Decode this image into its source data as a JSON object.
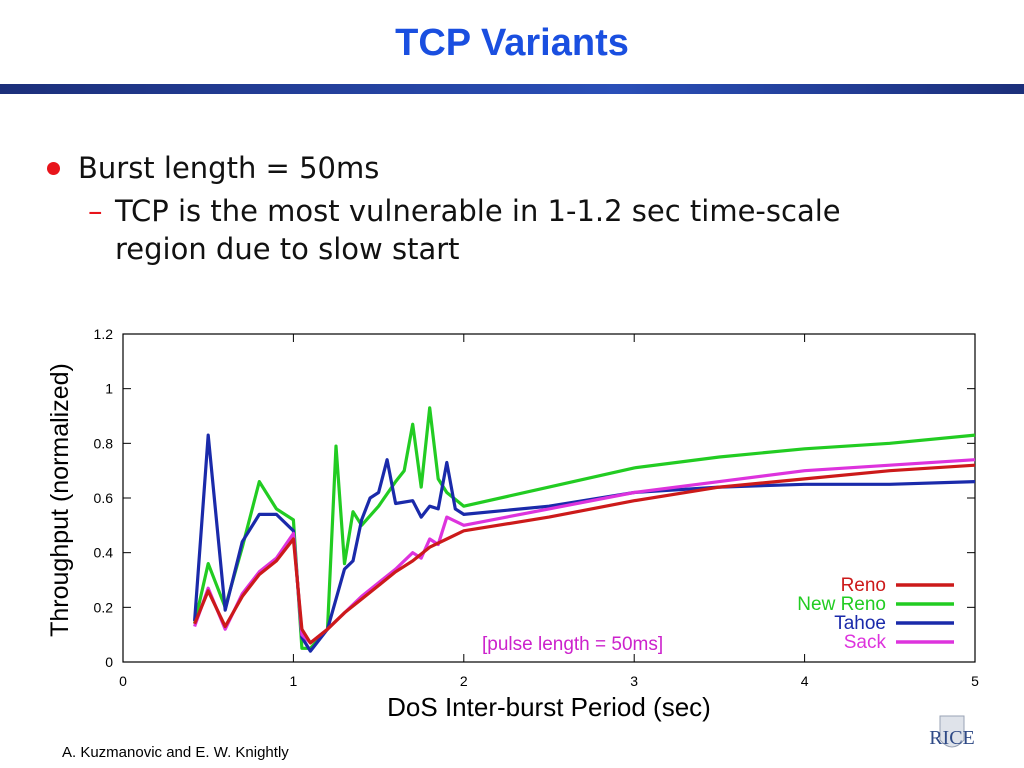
{
  "slide": {
    "title": "TCP Variants",
    "bullet_1": "Burst length = 50ms",
    "bullet_2": "TCP is the most vulnerable in 1-1.2 sec time-scale region due to slow start",
    "footer": "A. Kuzmanovic and E. W. Knightly",
    "logo_text": "RICE"
  },
  "chart_data": {
    "type": "line",
    "xlabel": "DoS Inter-burst Period (sec)",
    "ylabel": "Throughput (normalized)",
    "xlim": [
      0,
      5
    ],
    "ylim": [
      0,
      1.2
    ],
    "xticks": [
      "0",
      "1",
      "2",
      "3",
      "4",
      "5"
    ],
    "yticks": [
      "0",
      "0.2",
      "0.4",
      "0.6",
      "0.8",
      "1",
      "1.2"
    ],
    "annotation": "[pulse length = 50ms]",
    "legend_position": "bottom-right",
    "grid": false,
    "series": [
      {
        "name": "Reno",
        "color": "#cc1a1a",
        "points": [
          [
            0.42,
            0.14
          ],
          [
            0.5,
            0.26
          ],
          [
            0.6,
            0.13
          ],
          [
            0.7,
            0.24
          ],
          [
            0.8,
            0.32
          ],
          [
            0.9,
            0.37
          ],
          [
            1.0,
            0.45
          ],
          [
            1.05,
            0.12
          ],
          [
            1.1,
            0.07
          ],
          [
            1.2,
            0.12
          ],
          [
            1.3,
            0.18
          ],
          [
            1.4,
            0.23
          ],
          [
            1.5,
            0.28
          ],
          [
            1.6,
            0.33
          ],
          [
            1.7,
            0.37
          ],
          [
            1.8,
            0.42
          ],
          [
            1.9,
            0.45
          ],
          [
            2.0,
            0.48
          ],
          [
            2.5,
            0.53
          ],
          [
            3.0,
            0.59
          ],
          [
            3.5,
            0.64
          ],
          [
            4.0,
            0.67
          ],
          [
            4.5,
            0.7
          ],
          [
            5.0,
            0.72
          ]
        ]
      },
      {
        "name": "New Reno",
        "color": "#22cc22",
        "points": [
          [
            0.42,
            0.14
          ],
          [
            0.5,
            0.36
          ],
          [
            0.6,
            0.2
          ],
          [
            0.7,
            0.42
          ],
          [
            0.8,
            0.66
          ],
          [
            0.9,
            0.56
          ],
          [
            1.0,
            0.52
          ],
          [
            1.05,
            0.05
          ],
          [
            1.1,
            0.05
          ],
          [
            1.2,
            0.12
          ],
          [
            1.25,
            0.79
          ],
          [
            1.3,
            0.36
          ],
          [
            1.35,
            0.55
          ],
          [
            1.4,
            0.5
          ],
          [
            1.5,
            0.57
          ],
          [
            1.6,
            0.66
          ],
          [
            1.65,
            0.7
          ],
          [
            1.7,
            0.87
          ],
          [
            1.75,
            0.64
          ],
          [
            1.8,
            0.93
          ],
          [
            1.85,
            0.67
          ],
          [
            1.9,
            0.62
          ],
          [
            2.0,
            0.57
          ],
          [
            2.5,
            0.64
          ],
          [
            3.0,
            0.71
          ],
          [
            3.5,
            0.75
          ],
          [
            4.0,
            0.78
          ],
          [
            4.5,
            0.8
          ],
          [
            5.0,
            0.83
          ]
        ]
      },
      {
        "name": "Tahoe",
        "color": "#1a2aaa",
        "points": [
          [
            0.42,
            0.15
          ],
          [
            0.5,
            0.83
          ],
          [
            0.6,
            0.19
          ],
          [
            0.7,
            0.44
          ],
          [
            0.8,
            0.54
          ],
          [
            0.9,
            0.54
          ],
          [
            1.0,
            0.48
          ],
          [
            1.05,
            0.09
          ],
          [
            1.1,
            0.04
          ],
          [
            1.2,
            0.12
          ],
          [
            1.3,
            0.34
          ],
          [
            1.35,
            0.37
          ],
          [
            1.4,
            0.52
          ],
          [
            1.45,
            0.6
          ],
          [
            1.5,
            0.62
          ],
          [
            1.55,
            0.74
          ],
          [
            1.6,
            0.58
          ],
          [
            1.7,
            0.59
          ],
          [
            1.75,
            0.53
          ],
          [
            1.8,
            0.57
          ],
          [
            1.85,
            0.56
          ],
          [
            1.9,
            0.73
          ],
          [
            1.95,
            0.56
          ],
          [
            2.0,
            0.54
          ],
          [
            2.5,
            0.57
          ],
          [
            3.0,
            0.62
          ],
          [
            3.5,
            0.64
          ],
          [
            4.0,
            0.65
          ],
          [
            4.5,
            0.65
          ],
          [
            5.0,
            0.66
          ]
        ]
      },
      {
        "name": "Sack",
        "color": "#dd33dd",
        "points": [
          [
            0.42,
            0.13
          ],
          [
            0.5,
            0.27
          ],
          [
            0.6,
            0.12
          ],
          [
            0.7,
            0.25
          ],
          [
            0.8,
            0.33
          ],
          [
            0.9,
            0.38
          ],
          [
            1.0,
            0.47
          ],
          [
            1.05,
            0.1
          ],
          [
            1.1,
            0.07
          ],
          [
            1.2,
            0.12
          ],
          [
            1.3,
            0.18
          ],
          [
            1.4,
            0.24
          ],
          [
            1.5,
            0.29
          ],
          [
            1.6,
            0.34
          ],
          [
            1.7,
            0.4
          ],
          [
            1.75,
            0.38
          ],
          [
            1.8,
            0.45
          ],
          [
            1.85,
            0.43
          ],
          [
            1.9,
            0.53
          ],
          [
            2.0,
            0.5
          ],
          [
            2.5,
            0.56
          ],
          [
            3.0,
            0.62
          ],
          [
            3.5,
            0.66
          ],
          [
            4.0,
            0.7
          ],
          [
            4.5,
            0.72
          ],
          [
            5.0,
            0.74
          ]
        ]
      }
    ]
  }
}
